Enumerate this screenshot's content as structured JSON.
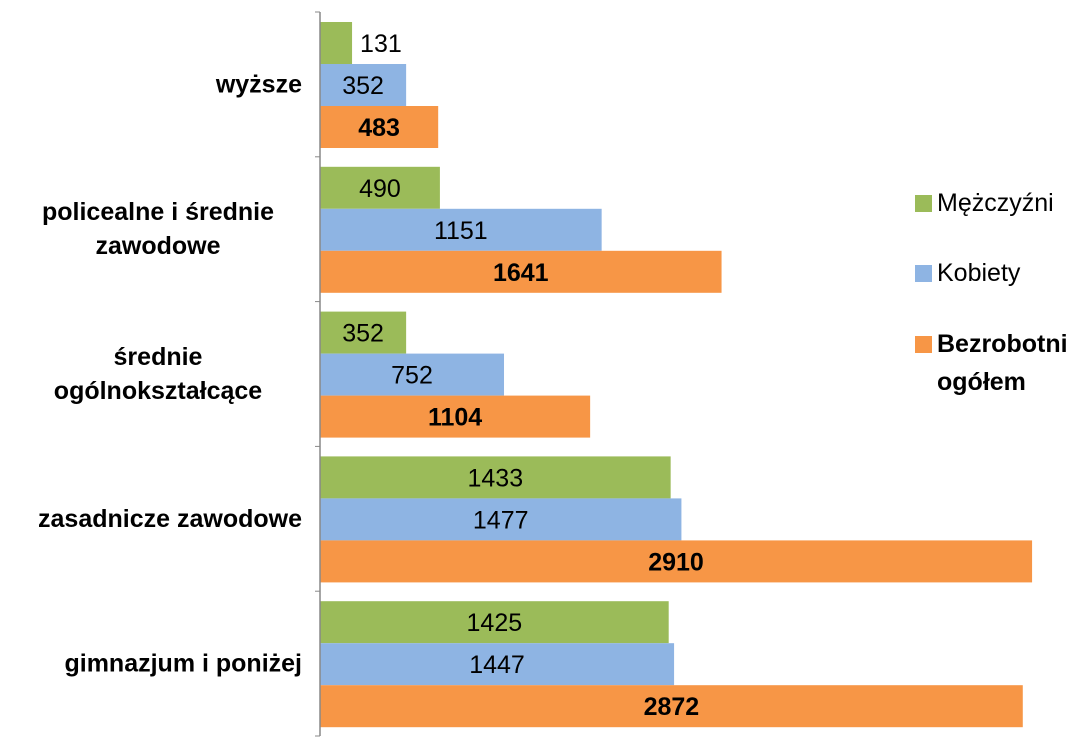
{
  "chart_data": {
    "type": "bar",
    "orientation": "horizontal",
    "categories": [
      "wyższe",
      "policealne i średnie zawodowe",
      "średnie ogólnokształcące",
      "zasadnicze zawodowe",
      "gimnazjum i poniżej"
    ],
    "category_lines": [
      [
        "wyższe"
      ],
      [
        "policealne i średnie",
        "zawodowe"
      ],
      [
        "średnie",
        "ogólnokształcące"
      ],
      [
        "zasadnicze zawodowe"
      ],
      [
        "gimnazjum i poniżej"
      ]
    ],
    "series": [
      {
        "name": "Mężczyźni",
        "color": "#9BBB59",
        "values": [
          131,
          490,
          352,
          1433,
          1425
        ],
        "bold": false
      },
      {
        "name": "Kobiety",
        "color": "#8EB4E3",
        "values": [
          352,
          1151,
          752,
          1477,
          1447
        ],
        "bold": false
      },
      {
        "name": "Bezrobotni ogółem",
        "name_lines": [
          "Bezrobotni",
          "ogółem"
        ],
        "color": "#F79646",
        "values": [
          483,
          1641,
          1104,
          2910,
          2872
        ],
        "bold": true
      }
    ],
    "xlim": [
      0,
      2950
    ],
    "grid": false,
    "legend_position": "right",
    "title": "",
    "xlabel": "",
    "ylabel": ""
  }
}
